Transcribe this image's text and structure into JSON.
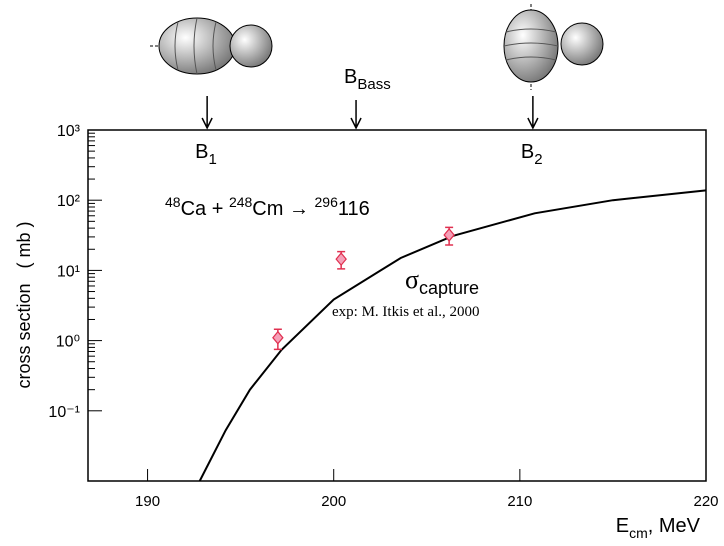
{
  "chart_data": {
    "type": "scatter",
    "x_label": [
      "E",
      "cm",
      ",  MeV"
    ],
    "y_label": "cross section   ( mb )",
    "xlim": [
      186.8,
      220
    ],
    "xticks": [
      190,
      200,
      210,
      220
    ],
    "ylim": [
      0.01,
      1000
    ],
    "log_y": true,
    "yticks": [
      {
        "value": 0.1,
        "label": "10⁻¹"
      },
      {
        "value": 1,
        "label": "10⁰"
      },
      {
        "value": 10,
        "label": "10¹"
      },
      {
        "value": 100,
        "label": "10²"
      },
      {
        "value": 1000,
        "label": "10³"
      }
    ],
    "barriers": [
      {
        "label": [
          "B",
          "1"
        ],
        "x": 193.2
      },
      {
        "label": [
          "B",
          "Bass"
        ],
        "x": 201.2
      },
      {
        "label": [
          "B",
          "2"
        ],
        "x": 210.7
      }
    ],
    "reaction": [
      "48",
      "Ca + ",
      "248",
      "Cm → ",
      "296",
      "116"
    ],
    "curve_label": [
      "σ",
      "capture"
    ],
    "exp_label": "exp: M. Itkis et al., 2000",
    "curve": {
      "color": "#000",
      "x": [
        192.8,
        194.2,
        195.5,
        197.2,
        200,
        203.6,
        206.4,
        210.8,
        215,
        220
      ],
      "values": [
        0.01,
        0.053,
        0.2,
        0.74,
        3.85,
        15,
        31,
        65,
        100,
        138
      ]
    },
    "series": [
      {
        "color": "#e03050",
        "x": [
          197.0,
          200.4,
          206.2
        ],
        "values": [
          1.1,
          14.5,
          32
        ],
        "errors": [
          0.35,
          4,
          9
        ]
      }
    ]
  }
}
